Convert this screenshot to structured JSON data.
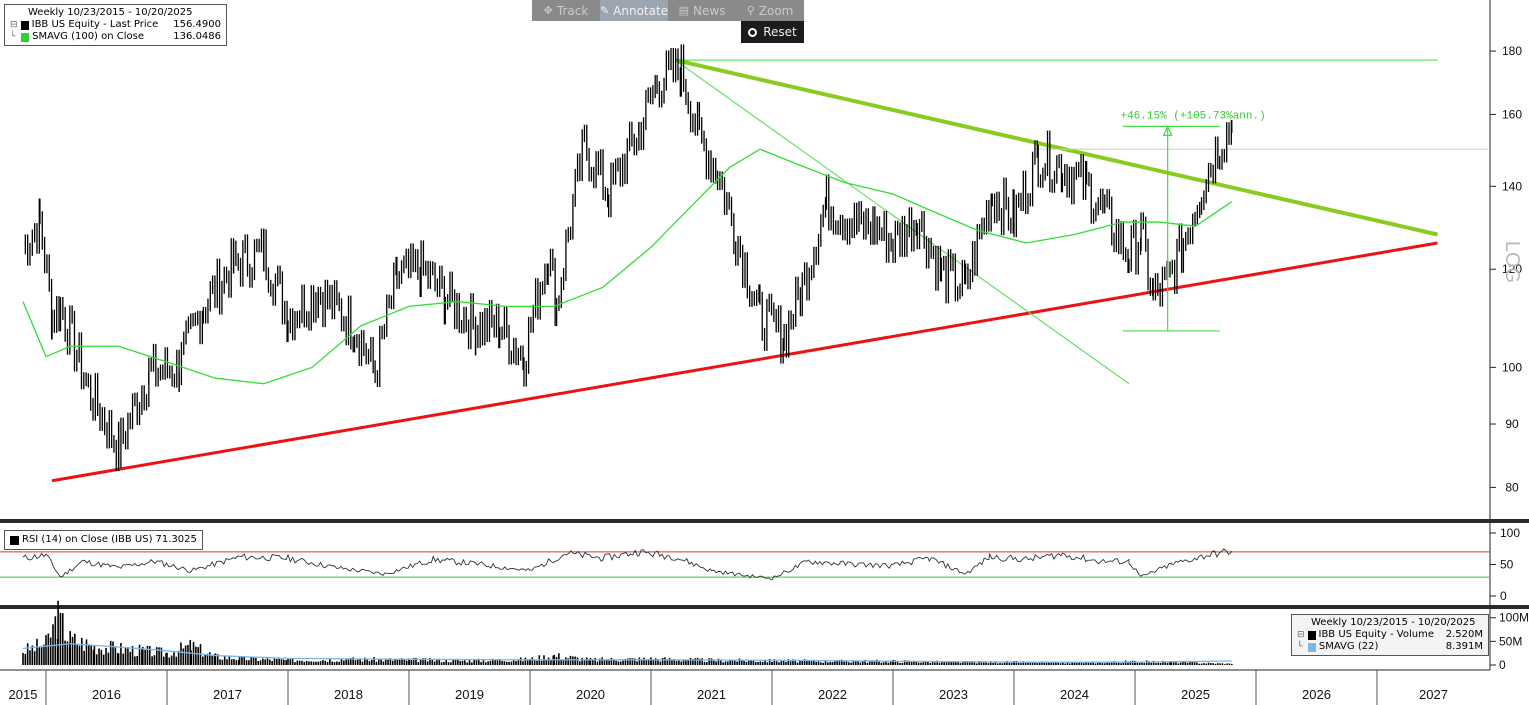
{
  "toolbar": {
    "buttons": [
      {
        "label": "Track",
        "icon": "crosshair-icon"
      },
      {
        "label": "Annotate",
        "icon": "pencil-icon"
      },
      {
        "label": "News",
        "icon": "news-icon"
      },
      {
        "label": "Zoom",
        "icon": "magnifier-icon"
      }
    ],
    "active": "Annotate",
    "reset_label": "Reset"
  },
  "legend_main": {
    "period": "Weekly 10/23/2015 - 10/20/2025",
    "series1_label": "IBB US Equity - Last Price",
    "series1_value": "156.4900",
    "series2_label": "SMAVG (100)  on Close",
    "series2_value": "136.0486"
  },
  "legend_rsi": {
    "label": "RSI (14)  on Close (IBB US)",
    "value": "71.3025"
  },
  "legend_volume": {
    "period": "Weekly 10/23/2015 - 10/20/2025",
    "series1_label": "IBB US Equity - Volume",
    "series1_value": "2.520M",
    "series2_label": "SMAVG (22)",
    "series2_value": "8.391M"
  },
  "scale_label": "LOG",
  "annotation_text": "+46.15% (+105.73%ann.)",
  "colors": {
    "price": "#000000",
    "sma": "#33dd33",
    "support_line": "#ee1111",
    "resistance_line": "#88cc22",
    "thin_trend": "#44dd44",
    "rsi_upper": "#dd3333",
    "rsi_lower": "#33cc33",
    "vol_sma": "#7ab8ea"
  },
  "chart_data": [
    {
      "type": "line",
      "panel": "price",
      "scale": "log",
      "x_label_years": [
        "2015",
        "2016",
        "2017",
        "2018",
        "2019",
        "2020",
        "2021",
        "2022",
        "2023",
        "2024",
        "2025",
        "2026",
        "2027"
      ],
      "y_ticks": [
        80,
        90,
        100,
        120,
        140,
        160,
        180
      ],
      "ylim": [
        76,
        195
      ],
      "series": [
        {
          "name": "IBB US Equity - Last Price",
          "x": [
            2015.81,
            2015.95,
            2016.05,
            2016.12,
            2016.35,
            2016.6,
            2016.85,
            2017.1,
            2017.3,
            2017.55,
            2017.8,
            2018.0,
            2018.25,
            2018.55,
            2018.72,
            2018.9,
            2019.1,
            2019.3,
            2019.55,
            2019.75,
            2019.95,
            2020.15,
            2020.22,
            2020.45,
            2020.65,
            2020.9,
            2021.05,
            2021.25,
            2021.4,
            2021.55,
            2021.7,
            2021.9,
            2022.1,
            2022.25,
            2022.45,
            2022.7,
            2022.85,
            2023.0,
            2023.2,
            2023.4,
            2023.6,
            2023.82,
            2024.0,
            2024.2,
            2024.4,
            2024.6,
            2024.75,
            2024.95,
            2025.05,
            2025.15,
            2025.27,
            2025.4,
            2025.55,
            2025.7,
            2025.8
          ],
          "values": [
            125,
            131,
            110,
            112,
            96,
            86,
            99,
            100,
            112,
            121,
            124,
            110,
            115,
            108,
            99,
            118,
            120,
            114,
            108,
            108,
            102,
            124,
            112,
            151,
            138,
            155,
            170,
            174,
            153,
            144,
            128,
            110,
            106,
            116,
            136,
            130,
            130,
            126,
            132,
            119,
            116,
            138,
            132,
            148,
            145,
            140,
            133,
            123,
            128,
            114,
            117,
            126,
            140,
            152,
            156.49
          ]
        },
        {
          "name": "SMAVG (100)  on Close",
          "x": [
            2015.81,
            2016.0,
            2016.2,
            2016.6,
            2017.0,
            2017.4,
            2017.8,
            2018.2,
            2018.6,
            2019.0,
            2019.4,
            2019.8,
            2020.2,
            2020.6,
            2021.0,
            2021.4,
            2021.65,
            2021.9,
            2022.2,
            2022.6,
            2023.0,
            2023.3,
            2023.7,
            2024.1,
            2024.5,
            2024.9,
            2025.2,
            2025.5,
            2025.8
          ],
          "values": [
            113,
            102,
            104,
            104,
            101,
            98,
            97,
            100,
            108,
            112,
            113,
            112,
            112,
            116,
            125,
            137,
            145,
            150,
            146,
            141,
            138,
            134,
            129,
            126,
            128,
            131,
            131,
            130,
            136.05
          ]
        }
      ],
      "trend_lines": [
        {
          "name": "support",
          "from": [
            2016.05,
            81
          ],
          "to": [
            2027.5,
            126
          ]
        },
        {
          "name": "resistance",
          "from": [
            2021.2,
            177
          ],
          "to": [
            2027.5,
            128
          ]
        },
        {
          "name": "horizontal",
          "from": [
            2021.2,
            177
          ],
          "to": [
            2027.5,
            177
          ]
        },
        {
          "name": "steep",
          "from": [
            2021.2,
            177
          ],
          "to": [
            2024.95,
            97
          ]
        }
      ],
      "annotation": {
        "text": "+46.15% (+105.73%ann.)",
        "from": [
          2025.27,
          107
        ],
        "to": [
          2025.27,
          156.5
        ]
      }
    },
    {
      "type": "line",
      "panel": "rsi",
      "y_ticks": [
        0,
        50,
        100
      ],
      "ylim": [
        0,
        100
      ],
      "levels": [
        70,
        30
      ],
      "series": [
        {
          "name": "RSI (14)  on Close (IBB US)",
          "x": [
            2015.81,
            2016.0,
            2016.12,
            2016.3,
            2016.6,
            2016.9,
            2017.2,
            2017.6,
            2018.0,
            2018.4,
            2018.8,
            2019.2,
            2019.6,
            2020.0,
            2020.3,
            2020.6,
            2020.9,
            2021.2,
            2021.5,
            2021.8,
            2022.0,
            2022.3,
            2022.7,
            2023.0,
            2023.3,
            2023.6,
            2023.8,
            2024.1,
            2024.4,
            2024.7,
            2024.95,
            2025.05,
            2025.3,
            2025.6,
            2025.8
          ],
          "values": [
            60,
            65,
            30,
            55,
            45,
            55,
            40,
            62,
            60,
            45,
            35,
            58,
            50,
            40,
            68,
            60,
            70,
            62,
            40,
            32,
            28,
            55,
            50,
            48,
            60,
            35,
            62,
            58,
            66,
            55,
            55,
            30,
            50,
            65,
            71.3
          ]
        }
      ]
    },
    {
      "type": "bar",
      "panel": "volume",
      "y_ticks": [
        "0",
        "50M",
        "100M"
      ],
      "ylim": [
        0,
        110
      ],
      "series": [
        {
          "name": "IBB US Equity - Volume",
          "x": [
            2015.81,
            2016.0,
            2016.1,
            2016.2,
            2016.4,
            2016.6,
            2016.8,
            2017.0,
            2017.2,
            2017.4,
            2017.6,
            2018.0,
            2018.5,
            2019.0,
            2019.5,
            2020.0,
            2020.2,
            2020.5,
            2021.0,
            2021.5,
            2022.0,
            2022.5,
            2023.0,
            2023.5,
            2024.0,
            2024.5,
            2025.0,
            2025.3,
            2025.8
          ],
          "values": [
            30,
            45,
            100,
            55,
            40,
            35,
            30,
            25,
            40,
            18,
            14,
            10,
            12,
            11,
            9,
            12,
            20,
            11,
            13,
            10,
            9,
            8,
            8,
            6,
            6,
            5,
            7,
            6,
            2.5
          ]
        },
        {
          "name": "SMAVG (22)",
          "x": [
            2015.81,
            2016.2,
            2016.6,
            2017.0,
            2017.4,
            2018.0,
            2019.0,
            2020.0,
            2021.0,
            2022.0,
            2023.0,
            2024.0,
            2025.0,
            2025.8
          ],
          "values": [
            35,
            45,
            38,
            30,
            20,
            14,
            12,
            11,
            11,
            10,
            8,
            6,
            6,
            8.4
          ]
        }
      ]
    }
  ]
}
